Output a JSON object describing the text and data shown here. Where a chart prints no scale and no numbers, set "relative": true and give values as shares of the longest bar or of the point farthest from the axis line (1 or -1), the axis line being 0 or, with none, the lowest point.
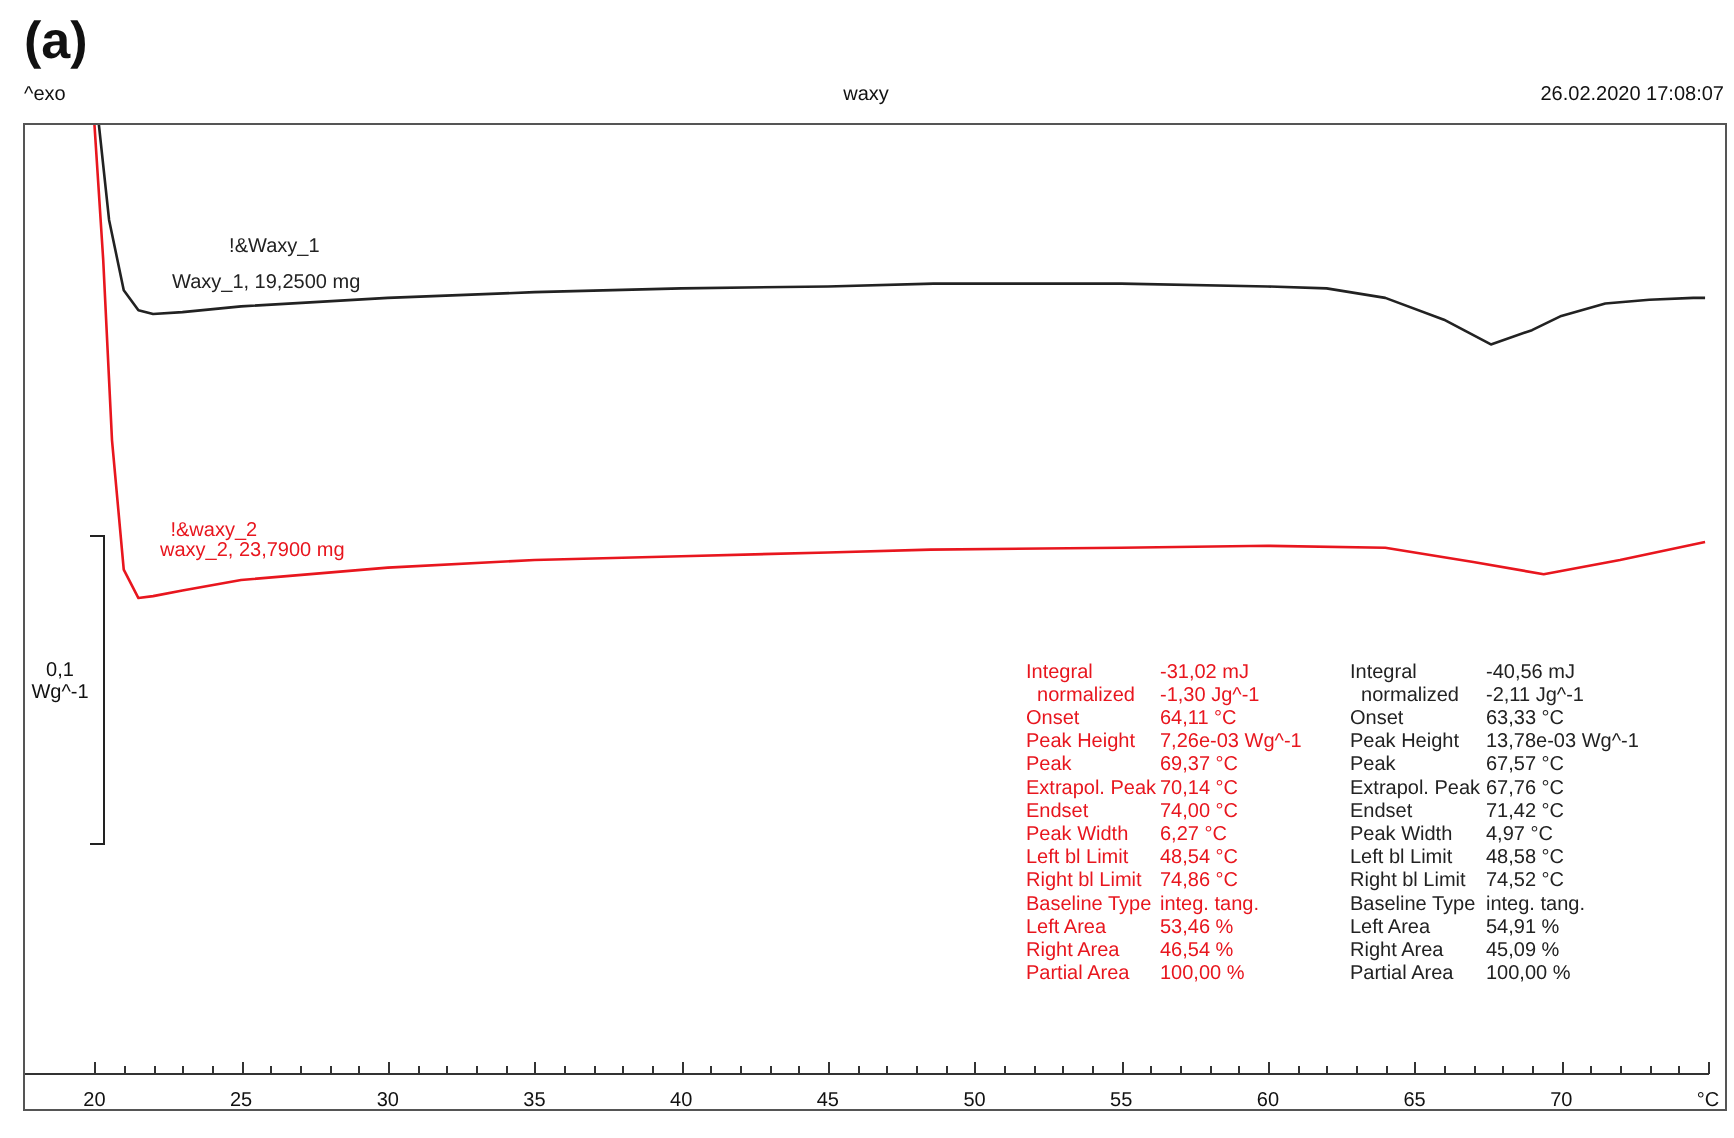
{
  "chart_data": {
    "type": "line",
    "title": "waxy",
    "relative": true,
    "grid": false,
    "legend": false,
    "marker": "none",
    "line_style": "solid",
    "tick_labels": "x",
    "xlim": [
      17.6,
      75
    ],
    "xticks": [
      20,
      {
        "value": 21,
        "label": null
      },
      {
        "value": 22,
        "label": null
      },
      {
        "value": 23,
        "label": null
      },
      {
        "value": 24,
        "label": null
      },
      25,
      {
        "value": 26,
        "label": null
      },
      {
        "value": 27,
        "label": null
      },
      {
        "value": 28,
        "label": null
      },
      {
        "value": 29,
        "label": null
      },
      30,
      {
        "value": 31,
        "label": null
      },
      {
        "value": 32,
        "label": null
      },
      {
        "value": 33,
        "label": null
      },
      {
        "value": 34,
        "label": null
      },
      35,
      {
        "value": 36,
        "label": null
      },
      {
        "value": 37,
        "label": null
      },
      {
        "value": 38,
        "label": null
      },
      {
        "value": 39,
        "label": null
      },
      40,
      {
        "value": 41,
        "label": null
      },
      {
        "value": 42,
        "label": null
      },
      {
        "value": 43,
        "label": null
      },
      {
        "value": 44,
        "label": null
      },
      45,
      {
        "value": 46,
        "label": null
      },
      {
        "value": 47,
        "label": null
      },
      {
        "value": 48,
        "label": null
      },
      {
        "value": 49,
        "label": null
      },
      50,
      {
        "value": 51,
        "label": null
      },
      {
        "value": 52,
        "label": null
      },
      {
        "value": 53,
        "label": null
      },
      {
        "value": 54,
        "label": null
      },
      55,
      {
        "value": 56,
        "label": null
      },
      {
        "value": 57,
        "label": null
      },
      {
        "value": 58,
        "label": null
      },
      {
        "value": 59,
        "label": null
      },
      60,
      {
        "value": 61,
        "label": null
      },
      {
        "value": 62,
        "label": null
      },
      {
        "value": 63,
        "label": null
      },
      {
        "value": 64,
        "label": null
      },
      65,
      {
        "value": 66,
        "label": null
      },
      {
        "value": 67,
        "label": null
      },
      {
        "value": 68,
        "label": null
      },
      {
        "value": 69,
        "label": null
      },
      70,
      {
        "value": 71,
        "label": null
      },
      {
        "value": 72,
        "label": null
      },
      {
        "value": 73,
        "label": null
      },
      {
        "value": 74,
        "label": null
      },
      {
        "value": 75,
        "label": "°C"
      }
    ],
    "series": [
      {
        "name": "!&waxy_2",
        "color": "#e8161e",
        "x": [
          20.0,
          20.3,
          20.6,
          21.0,
          21.5,
          22,
          23,
          25,
          30,
          35,
          40,
          45,
          48.5,
          55,
          60,
          64,
          67,
          69.4,
          72,
          74.9
        ],
        "values": [
          1,
          0.857,
          0.667,
          0.531,
          0.501,
          0.503,
          0.509,
          0.52,
          0.533,
          0.541,
          0.545,
          0.549,
          0.552,
          0.554,
          0.556,
          0.554,
          0.539,
          0.526,
          0.541,
          0.56
        ]
      },
      {
        "name": "!&Waxy_1",
        "color": "#222222",
        "x": [
          20.15,
          20.5,
          21.0,
          21.5,
          22,
          23,
          25,
          30,
          35,
          40,
          45,
          48.6,
          55,
          60,
          62,
          64,
          66,
          67.6,
          69,
          70,
          71.5,
          73,
          74.5,
          74.9
        ],
        "values": [
          1,
          0.899,
          0.825,
          0.804,
          0.8,
          0.802,
          0.808,
          0.817,
          0.823,
          0.827,
          0.829,
          0.832,
          0.832,
          0.829,
          0.827,
          0.817,
          0.794,
          0.768,
          0.783,
          0.798,
          0.811,
          0.815,
          0.817,
          0.817
        ]
      }
    ],
    "annotations": [
      "(a)",
      "^exo",
      "26.02.2020 17:08:07",
      "0,1\nWg^-1",
      "Integral\t-31,02 mJ\n  normalized\t-1,30 Jg^-1\nOnset\t64,11 °C\nPeak Height\t7,26e-03 Wg^-1\nPeak\t69,37 °C\nExtrapol. Peak\t70,14 °C\nEndset\t74,00 °C\nPeak Width\t6,27 °C\nLeft bl Limit\t48,54 °C\nRight bl Limit\t74,86 °C\nBaseline Type\tinteg. tang.\nLeft Area\t53,46 %\nRight Area\t46,54 %\nPartial Area\t100,00 %",
      "Integral\t-40,56 mJ\n  normalized\t-2,11 Jg^-1\nOnset\t63,33 °C\nPeak Height\t13,78e-03 Wg^-1\nPeak\t67,57 °C\nExtrapol. Peak\t67,76 °C\nEndset\t71,42 °C\nPeak Width\t4,97 °C\nLeft bl Limit\t48,58 °C\nRight bl Limit\t74,52 °C\nBaseline Type\tinteg. tang.\nLeft Area\t54,91 %\nRight Area\t45,09 %\nPartial Area\t100,00 %",
      "waxy_2, 23,7900 mg",
      "Waxy_1, 19,2500 mg"
    ]
  }
}
